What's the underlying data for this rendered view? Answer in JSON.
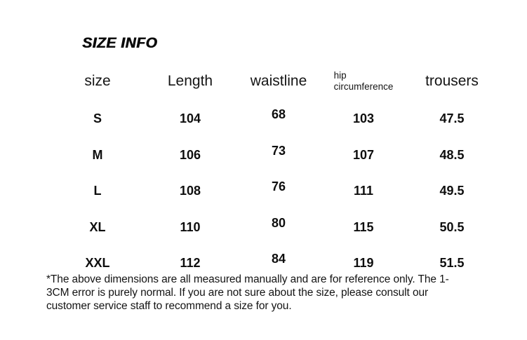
{
  "title": "SIZE INFO",
  "table": {
    "headers": [
      "size",
      "Length",
      "waistline",
      "hip\ncircumference",
      "trousers"
    ],
    "rows": [
      [
        "S",
        "104",
        "68",
        "103",
        "47.5"
      ],
      [
        "M",
        "106",
        "73",
        "107",
        "48.5"
      ],
      [
        "L",
        "108",
        "76",
        "111",
        "49.5"
      ],
      [
        "XL",
        "110",
        "80",
        "115",
        "50.5"
      ],
      [
        "XXL",
        "112",
        "84",
        "119",
        "51.5"
      ]
    ]
  },
  "footnote": "*The above dimensions are all measured manually and are for reference only. The 1-\n3CM error is purely normal. If you are not sure about the size, please consult our\ncustomer service staff to recommend a size for you."
}
